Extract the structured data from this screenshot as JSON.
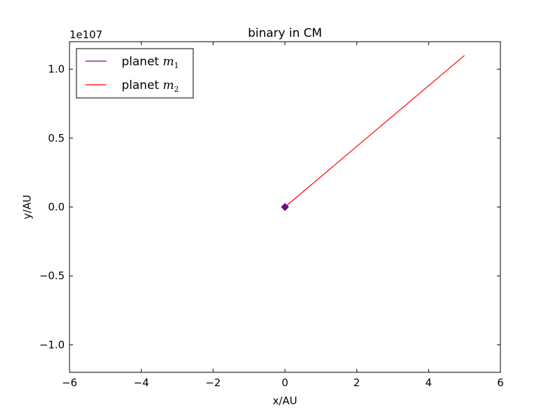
{
  "chart_data": {
    "type": "line",
    "title": "binary in CM",
    "xlabel": "x/AU",
    "ylabel": "y/AU",
    "offset_text": "1e107",
    "xlim": [
      -6,
      6
    ],
    "ylim": [
      -1.2,
      1.2
    ],
    "xticks": [
      -6,
      -4,
      -2,
      0,
      2,
      4,
      6
    ],
    "xtick_labels": [
      "−6",
      "−4",
      "−2",
      "0",
      "2",
      "4",
      "6"
    ],
    "yticks": [
      -1.0,
      -0.5,
      0.0,
      0.5,
      1.0
    ],
    "ytick_labels": [
      "−1.0",
      "−0.5",
      "0.0",
      "0.5",
      "1.0"
    ],
    "grid": false,
    "legend_position": "top-left",
    "series": [
      {
        "name": "planet",
        "subscript": "1",
        "color": "#800080",
        "marker": "diamond",
        "x": [
          0,
          0
        ],
        "y": [
          0,
          0
        ]
      },
      {
        "name": "planet",
        "subscript": "2",
        "color": "#ff0000",
        "marker": "none",
        "x": [
          0,
          5
        ],
        "y": [
          0,
          1.1
        ]
      }
    ],
    "legend_math_var": "m"
  }
}
